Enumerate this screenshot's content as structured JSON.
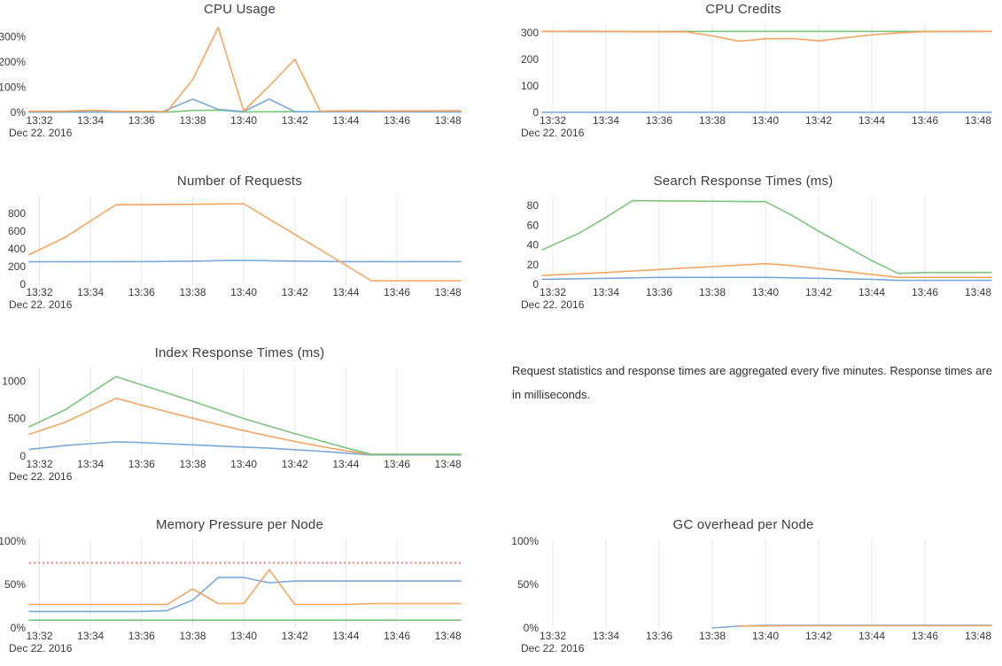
{
  "palette": {
    "blue": "#7aa9d8",
    "orange": "#f5a55f",
    "green": "#7cc57e",
    "red": "#ed8080",
    "grid": "#e6e6e6",
    "title_text": "#3d3d44",
    "tick_text": "#3a3a3a"
  },
  "x_axis": {
    "tick_minutes": [
      32,
      34,
      36,
      38,
      40,
      42,
      44,
      46,
      48
    ],
    "tick_labels": [
      "13:32",
      "13:34",
      "13:36",
      "13:38",
      "13:40",
      "13:42",
      "13:44",
      "13:46",
      "13:48"
    ],
    "date_label": "Dec 22. 2016"
  },
  "note": {
    "text": "Request statistics and response times are aggregated every five minutes. Response times are in milliseconds."
  },
  "chart_data": [
    {
      "type": "line",
      "title": "CPU Usage",
      "col": "left",
      "row": 1,
      "grid": false,
      "xlim": [
        31.6,
        48.6
      ],
      "ylim": [
        0,
        350
      ],
      "y_ticks": [
        {
          "value": 0,
          "label": "0%"
        },
        {
          "value": 100,
          "label": "100%"
        },
        {
          "value": 200,
          "label": "200%"
        },
        {
          "value": 300,
          "label": "300%"
        }
      ],
      "series": [
        {
          "name": "green",
          "color": "green",
          "points": [
            [
              31.6,
              1.5
            ],
            [
              37,
              1.5
            ],
            [
              38,
              8
            ],
            [
              39,
              9
            ],
            [
              40,
              2
            ],
            [
              41,
              3
            ],
            [
              48.5,
              2
            ]
          ]
        },
        {
          "name": "blue",
          "color": "blue",
          "points": [
            [
              31.6,
              2
            ],
            [
              36.8,
              2
            ],
            [
              38,
              53
            ],
            [
              39,
              12
            ],
            [
              40,
              4
            ],
            [
              41,
              53
            ],
            [
              42,
              3
            ],
            [
              48.5,
              2
            ]
          ]
        },
        {
          "name": "orange",
          "color": "orange",
          "points": [
            [
              31.6,
              5
            ],
            [
              33,
              5
            ],
            [
              34,
              9
            ],
            [
              35,
              5
            ],
            [
              37,
              4
            ],
            [
              38,
              130
            ],
            [
              39,
              336
            ],
            [
              40,
              6
            ],
            [
              41,
              105
            ],
            [
              42,
              210
            ],
            [
              43,
              5
            ],
            [
              44,
              7
            ],
            [
              46,
              6
            ],
            [
              48.5,
              7
            ]
          ]
        }
      ],
      "threshold": null
    },
    {
      "type": "line",
      "title": "CPU Credits",
      "col": "right",
      "row": 1,
      "grid": true,
      "xlim": [
        31.6,
        48.6
      ],
      "ylim": [
        0,
        333
      ],
      "y_ticks": [
        {
          "value": 0,
          "label": "0"
        },
        {
          "value": 100,
          "label": "100"
        },
        {
          "value": 200,
          "label": "200"
        },
        {
          "value": 300,
          "label": "300"
        }
      ],
      "series": [
        {
          "name": "blue",
          "color": "blue",
          "points": [
            [
              31.6,
              1
            ],
            [
              48.5,
              1
            ]
          ]
        },
        {
          "name": "green",
          "color": "green",
          "points": [
            [
              31.6,
              305
            ],
            [
              48.5,
              305
            ]
          ]
        },
        {
          "name": "orange",
          "color": "orange",
          "points": [
            [
              31.6,
              305
            ],
            [
              37,
              303
            ],
            [
              38,
              288
            ],
            [
              39,
              268
            ],
            [
              40,
              277
            ],
            [
              41,
              278
            ],
            [
              42,
              269
            ],
            [
              43,
              281
            ],
            [
              44,
              292
            ],
            [
              45,
              299
            ],
            [
              46,
              304
            ],
            [
              48.5,
              305
            ]
          ]
        }
      ],
      "threshold": null
    },
    {
      "type": "line",
      "title": "Number of Requests",
      "col": "left",
      "row": 2,
      "grid": true,
      "xlim": [
        31.6,
        48.6
      ],
      "ylim": [
        0,
        1000
      ],
      "y_ticks": [
        {
          "value": 0,
          "label": "0"
        },
        {
          "value": 200,
          "label": "200"
        },
        {
          "value": 400,
          "label": "400"
        },
        {
          "value": 600,
          "label": "600"
        },
        {
          "value": 800,
          "label": "800"
        }
      ],
      "series": [
        {
          "name": "blue",
          "color": "blue",
          "points": [
            [
              31.6,
              254
            ],
            [
              36,
              256
            ],
            [
              38,
              261
            ],
            [
              39,
              267
            ],
            [
              40,
              270
            ],
            [
              41,
              266
            ],
            [
              42,
              261
            ],
            [
              44,
              256
            ],
            [
              48.5,
              256
            ]
          ]
        },
        {
          "name": "orange",
          "color": "orange",
          "points": [
            [
              31.6,
              335
            ],
            [
              33,
              530
            ],
            [
              34,
              715
            ],
            [
              35,
              898
            ],
            [
              38,
              903
            ],
            [
              40,
              910
            ],
            [
              41,
              736
            ],
            [
              42,
              562
            ],
            [
              43,
              390
            ],
            [
              44,
              215
            ],
            [
              45,
              40
            ],
            [
              48.5,
              40
            ]
          ]
        }
      ],
      "threshold": null
    },
    {
      "type": "line",
      "title": "Search Response Times (ms)",
      "col": "right",
      "row": 2,
      "grid": true,
      "xlim": [
        31.6,
        48.6
      ],
      "ylim": [
        0,
        90
      ],
      "y_ticks": [
        {
          "value": 0,
          "label": "0"
        },
        {
          "value": 20,
          "label": "20"
        },
        {
          "value": 40,
          "label": "40"
        },
        {
          "value": 60,
          "label": "60"
        },
        {
          "value": 80,
          "label": "80"
        }
      ],
      "series": [
        {
          "name": "blue",
          "color": "blue",
          "points": [
            [
              31.6,
              5
            ],
            [
              34,
              6
            ],
            [
              36,
              7
            ],
            [
              40,
              7
            ],
            [
              42,
              6
            ],
            [
              44,
              5
            ],
            [
              45,
              4
            ],
            [
              48.5,
              4
            ]
          ]
        },
        {
          "name": "orange",
          "color": "orange",
          "points": [
            [
              31.6,
              9
            ],
            [
              34,
              12
            ],
            [
              36,
              15
            ],
            [
              38,
              18
            ],
            [
              40,
              21
            ],
            [
              41,
              19
            ],
            [
              42,
              16
            ],
            [
              43,
              13
            ],
            [
              44,
              10
            ],
            [
              45,
              7
            ],
            [
              48.5,
              7
            ]
          ]
        },
        {
          "name": "green",
          "color": "green",
          "points": [
            [
              31.6,
              35
            ],
            [
              33,
              52
            ],
            [
              34,
              68
            ],
            [
              35,
              85
            ],
            [
              40,
              84
            ],
            [
              41,
              70
            ],
            [
              42,
              54
            ],
            [
              43,
              39
            ],
            [
              44,
              24
            ],
            [
              45,
              11
            ],
            [
              46,
              12
            ],
            [
              48.5,
              12
            ]
          ]
        }
      ],
      "threshold": null
    },
    {
      "type": "line",
      "title": "Index Response Times (ms)",
      "col": "left",
      "row": 3,
      "grid": true,
      "xlim": [
        31.6,
        48.6
      ],
      "ylim": [
        0,
        1180
      ],
      "y_ticks": [
        {
          "value": 0,
          "label": "0"
        },
        {
          "value": 500,
          "label": "500"
        },
        {
          "value": 1000,
          "label": "1000"
        }
      ],
      "series": [
        {
          "name": "blue",
          "color": "blue",
          "points": [
            [
              31.6,
              90
            ],
            [
              33,
              140
            ],
            [
              34,
              165
            ],
            [
              35,
              190
            ],
            [
              36,
              180
            ],
            [
              37,
              165
            ],
            [
              38,
              150
            ],
            [
              39,
              135
            ],
            [
              40,
              120
            ],
            [
              41,
              105
            ],
            [
              42,
              85
            ],
            [
              43,
              65
            ],
            [
              44,
              40
            ],
            [
              45,
              15
            ],
            [
              48.5,
              15
            ]
          ]
        },
        {
          "name": "orange",
          "color": "orange",
          "points": [
            [
              31.6,
              290
            ],
            [
              33,
              450
            ],
            [
              34,
              610
            ],
            [
              35,
              770
            ],
            [
              36,
              680
            ],
            [
              37,
              590
            ],
            [
              38,
              505
            ],
            [
              39,
              420
            ],
            [
              40,
              340
            ],
            [
              41,
              265
            ],
            [
              42,
              195
            ],
            [
              43,
              130
            ],
            [
              44,
              70
            ],
            [
              45,
              25
            ],
            [
              48.5,
              25
            ]
          ]
        },
        {
          "name": "green",
          "color": "green",
          "points": [
            [
              31.6,
              390
            ],
            [
              33,
              615
            ],
            [
              34,
              840
            ],
            [
              35,
              1060
            ],
            [
              36,
              950
            ],
            [
              37,
              840
            ],
            [
              38,
              730
            ],
            [
              39,
              615
            ],
            [
              40,
              500
            ],
            [
              41,
              400
            ],
            [
              42,
              300
            ],
            [
              43,
              205
            ],
            [
              44,
              110
            ],
            [
              45,
              25
            ],
            [
              48.5,
              25
            ]
          ]
        }
      ],
      "threshold": null
    },
    {
      "type": "line",
      "title": "Memory Pressure per Node",
      "col": "left",
      "row": 4,
      "grid": true,
      "xlim": [
        31.6,
        48.6
      ],
      "ylim": [
        0,
        102
      ],
      "y_ticks": [
        {
          "value": 0,
          "label": "0%"
        },
        {
          "value": 50,
          "label": "50%"
        },
        {
          "value": 100,
          "label": "100%"
        }
      ],
      "series": [
        {
          "name": "green",
          "color": "green",
          "points": [
            [
              31.6,
              9
            ],
            [
              48.5,
              9
            ]
          ]
        },
        {
          "name": "blue",
          "color": "blue",
          "points": [
            [
              31.6,
              19
            ],
            [
              36,
              19
            ],
            [
              37,
              20
            ],
            [
              38,
              32
            ],
            [
              39,
              58
            ],
            [
              40,
              58
            ],
            [
              41,
              52
            ],
            [
              42,
              54
            ],
            [
              48.5,
              54
            ]
          ]
        },
        {
          "name": "orange",
          "color": "orange",
          "points": [
            [
              31.6,
              27
            ],
            [
              37,
              27
            ],
            [
              38,
              45
            ],
            [
              39,
              28
            ],
            [
              40,
              28
            ],
            [
              41,
              67
            ],
            [
              42,
              27
            ],
            [
              44,
              27
            ],
            [
              45,
              28
            ],
            [
              48.5,
              28
            ]
          ]
        }
      ],
      "threshold": {
        "value": 75,
        "color": "red",
        "style": "dotted"
      }
    },
    {
      "type": "line",
      "title": "GC overhead per Node",
      "col": "right",
      "row": 4,
      "grid": true,
      "xlim": [
        31.6,
        48.6
      ],
      "ylim": [
        0,
        102
      ],
      "y_ticks": [
        {
          "value": 0,
          "label": "0%"
        },
        {
          "value": 50,
          "label": "50%"
        },
        {
          "value": 100,
          "label": "100%"
        }
      ],
      "series": [
        {
          "name": "blue",
          "color": "blue",
          "points": [
            [
              38,
              0
            ],
            [
              39,
              2
            ],
            [
              40,
              3
            ],
            [
              48.5,
              3
            ]
          ]
        },
        {
          "name": "orange",
          "color": "orange",
          "points": [
            [
              39,
              2.2
            ],
            [
              41,
              2.5
            ],
            [
              48.5,
              2.5
            ]
          ]
        }
      ],
      "threshold": null
    }
  ]
}
